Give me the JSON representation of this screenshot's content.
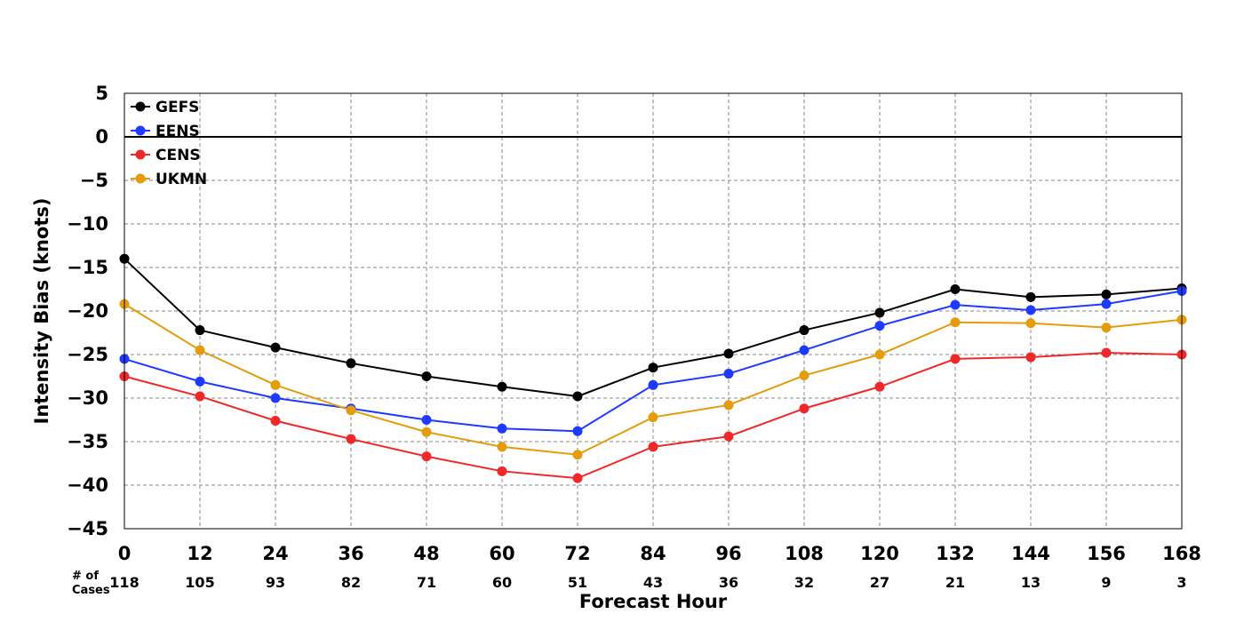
{
  "chart_data": {
    "type": "line",
    "xlabel": "Forecast Hour",
    "ylabel": "Intensity Bias (knots)",
    "x": [
      0,
      12,
      24,
      36,
      48,
      60,
      72,
      84,
      96,
      108,
      120,
      132,
      144,
      156,
      168
    ],
    "xlim": [
      0,
      168
    ],
    "ylim": [
      -45,
      5
    ],
    "yticks": [
      5,
      0,
      -5,
      -10,
      -15,
      -20,
      -25,
      -30,
      -35,
      -40,
      -45
    ],
    "ytick_labels": [
      "5",
      "0",
      "−5",
      "−10",
      "−15",
      "−20",
      "−25",
      "−30",
      "−35",
      "−40",
      "−45"
    ],
    "grid": true,
    "zero_line": 0,
    "legend_position": "top-left",
    "cases_label": "# of\nCases",
    "cases_label_lines": [
      "# of",
      "Cases"
    ],
    "cases": [
      "118",
      "105",
      "93",
      "82",
      "71",
      "60",
      "51",
      "43",
      "36",
      "32",
      "27",
      "21",
      "13",
      "9",
      "3"
    ],
    "series": [
      {
        "name": "GEFS",
        "color": "#000000",
        "values": [
          -14.0,
          -22.2,
          -24.2,
          -26.0,
          -27.5,
          -28.7,
          -29.8,
          -26.5,
          -24.9,
          -22.2,
          -20.2,
          -17.5,
          -18.4,
          -18.1,
          -17.4
        ]
      },
      {
        "name": "EENS",
        "color": "#1f3aff",
        "values": [
          -25.5,
          -28.1,
          -30.0,
          -31.2,
          -32.5,
          -33.5,
          -33.8,
          -28.5,
          -27.2,
          -24.5,
          -21.7,
          -19.3,
          -19.9,
          -19.2,
          -17.7
        ]
      },
      {
        "name": "CENS",
        "color": "#f0282a",
        "values": [
          -27.5,
          -29.8,
          -32.6,
          -34.7,
          -36.7,
          -38.4,
          -39.2,
          -35.6,
          -34.4,
          -31.2,
          -28.7,
          -25.5,
          -25.3,
          -24.8,
          -25.0
        ]
      },
      {
        "name": "UKMN",
        "color": "#e59c0b",
        "values": [
          -19.2,
          -24.5,
          -28.5,
          -31.4,
          -33.9,
          -35.6,
          -36.5,
          -32.2,
          -30.8,
          -27.4,
          -25.0,
          -21.3,
          -21.4,
          -21.9,
          -21.0
        ]
      }
    ]
  }
}
